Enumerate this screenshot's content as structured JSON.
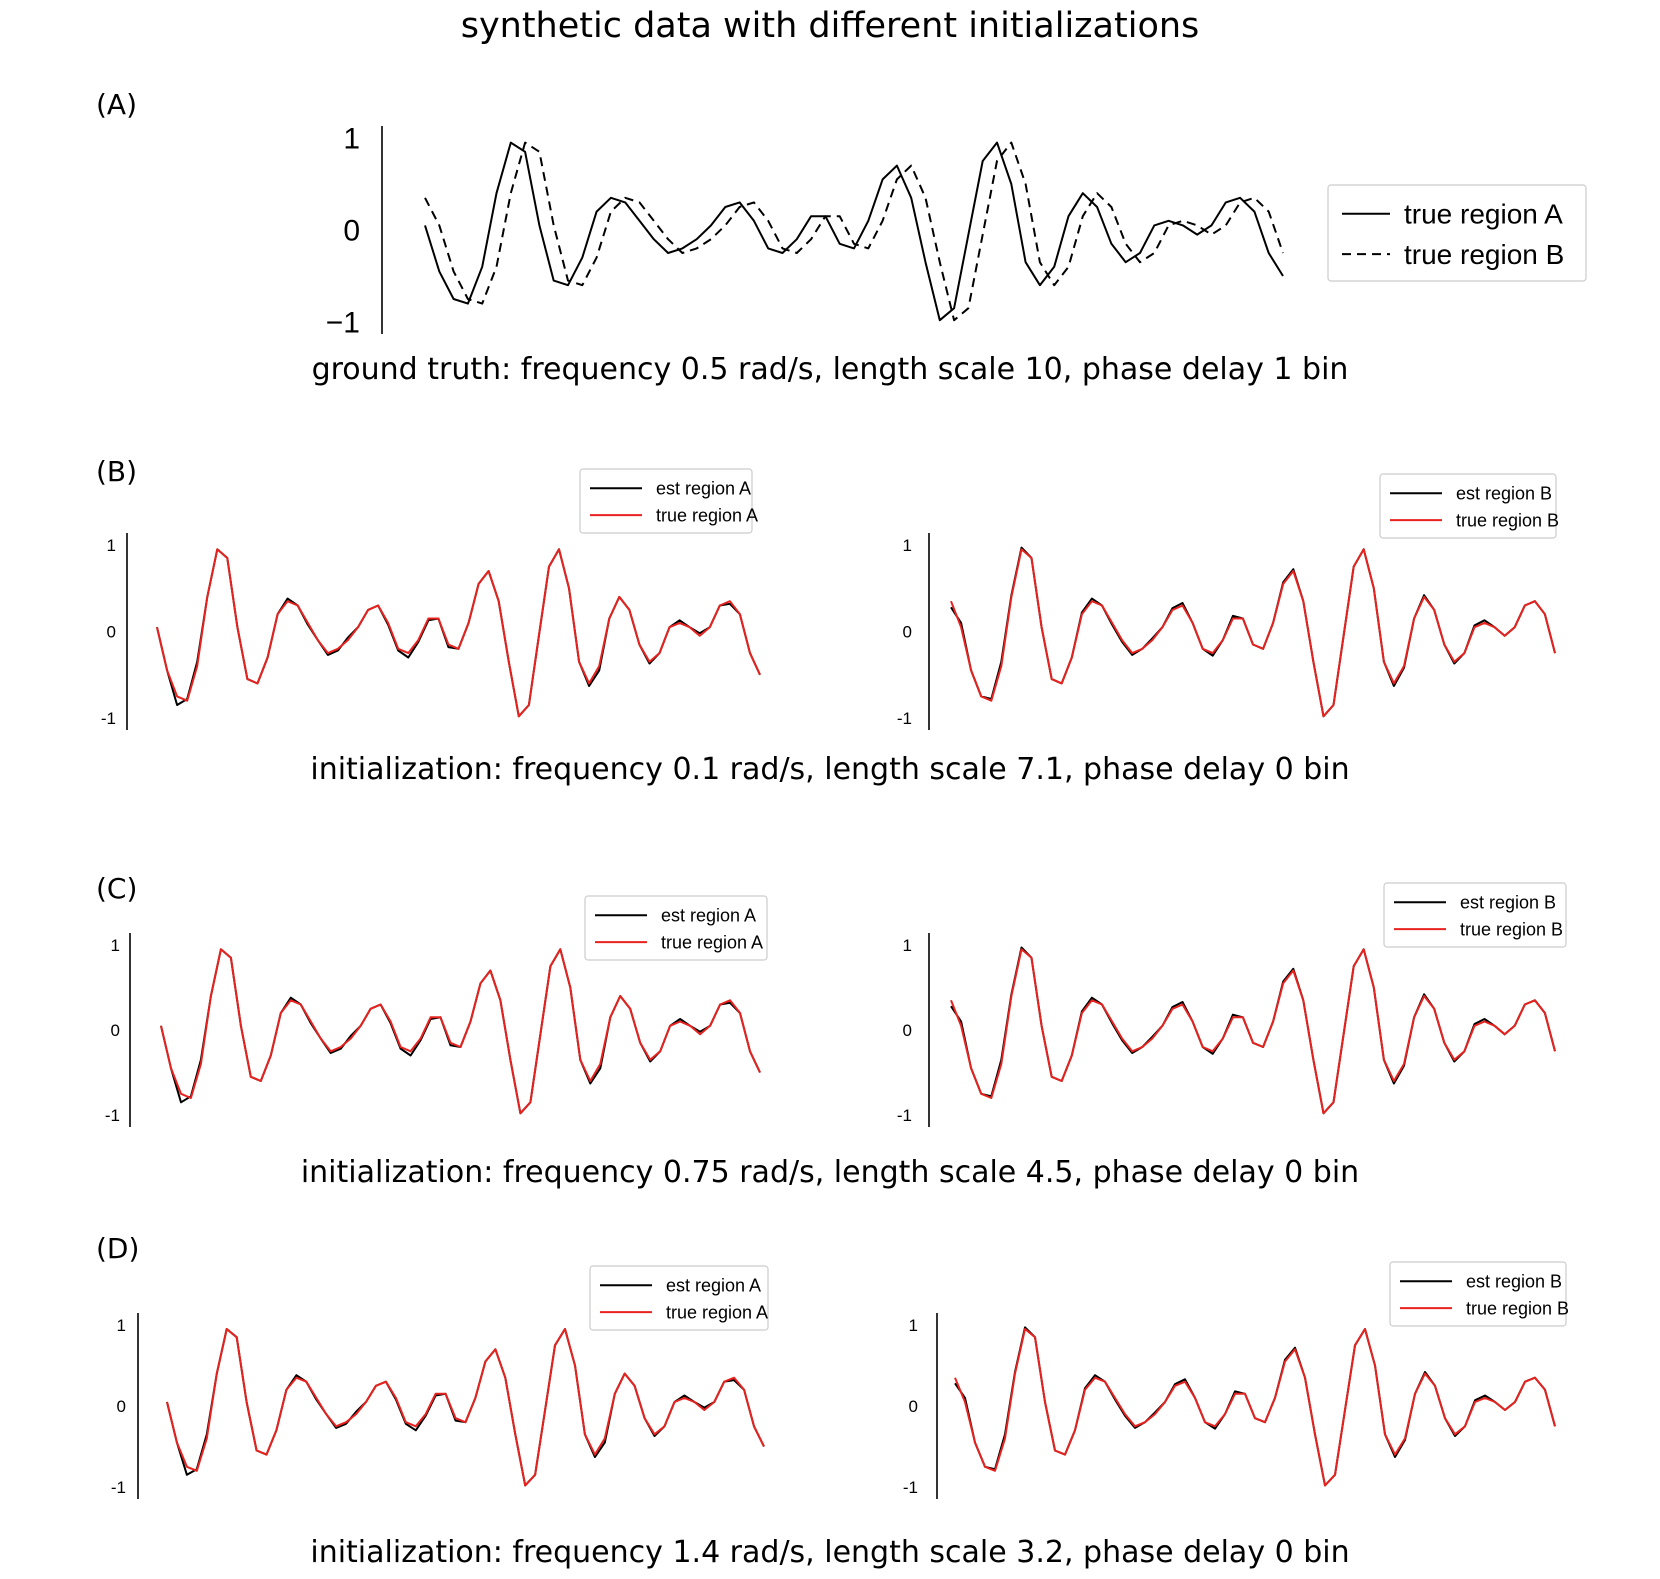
{
  "figure_title": "synthetic data with different initializations",
  "panels": {
    "A": {
      "label": "(A)",
      "caption": "ground truth: frequency 0.5 rad/s, length scale 10, phase delay 1 bin"
    },
    "B": {
      "label": "(B)",
      "caption": "initialization: frequency 0.1 rad/s, length scale 7.1, phase delay 0 bin"
    },
    "C": {
      "label": "(C)",
      "caption": "initialization: frequency 0.75 rad/s, length scale 4.5, phase delay 0 bin"
    },
    "D": {
      "label": "(D)",
      "caption": "initialization: frequency 1.4 rad/s, length scale 3.2, phase delay 0 bin"
    }
  },
  "colors": {
    "est": "#000000",
    "true": "#e8231f",
    "truth": "#000000"
  },
  "chart_data": [
    {
      "id": "A",
      "type": "line",
      "ylim": [
        -1,
        1
      ],
      "yticks": [
        "1",
        "0",
        "−1"
      ],
      "legend": "right",
      "series": [
        {
          "name": "true region A",
          "style": "solid",
          "values": [
            0.05,
            -0.45,
            -0.75,
            -0.8,
            -0.4,
            0.4,
            0.95,
            0.85,
            0.05,
            -0.55,
            -0.6,
            -0.3,
            0.2,
            0.35,
            0.3,
            0.1,
            -0.1,
            -0.25,
            -0.2,
            -0.1,
            0.05,
            0.25,
            0.3,
            0.1,
            -0.2,
            -0.25,
            -0.1,
            0.15,
            0.15,
            -0.15,
            -0.2,
            0.1,
            0.55,
            0.7,
            0.35,
            -0.35,
            -0.98,
            -0.85,
            -0.05,
            0.75,
            0.95,
            0.5,
            -0.35,
            -0.6,
            -0.4,
            0.15,
            0.4,
            0.25,
            -0.15,
            -0.35,
            -0.25,
            0.05,
            0.1,
            0.05,
            -0.05,
            0.05,
            0.3,
            0.35,
            0.2,
            -0.25,
            -0.5
          ]
        },
        {
          "name": "true region B",
          "style": "dashed",
          "values": [
            0.35,
            0.05,
            -0.45,
            -0.75,
            -0.8,
            -0.4,
            0.4,
            0.95,
            0.85,
            0.05,
            -0.55,
            -0.6,
            -0.3,
            0.2,
            0.35,
            0.3,
            0.1,
            -0.1,
            -0.25,
            -0.2,
            -0.1,
            0.05,
            0.25,
            0.3,
            0.1,
            -0.2,
            -0.25,
            -0.1,
            0.15,
            0.15,
            -0.15,
            -0.2,
            0.1,
            0.55,
            0.7,
            0.35,
            -0.35,
            -0.98,
            -0.85,
            -0.05,
            0.75,
            0.95,
            0.5,
            -0.35,
            -0.6,
            -0.4,
            0.15,
            0.4,
            0.25,
            -0.15,
            -0.35,
            -0.25,
            0.05,
            0.1,
            0.05,
            -0.05,
            0.05,
            0.3,
            0.35,
            0.2,
            -0.25
          ]
        }
      ]
    },
    {
      "id": "B-left",
      "type": "line",
      "ylim": [
        -1,
        1
      ],
      "yticks": [
        "1",
        "0",
        "-1"
      ],
      "legend": "top-right",
      "series": [
        {
          "name": "est region A",
          "values": [
            0.05,
            -0.45,
            -0.85,
            -0.78,
            -0.35,
            0.4,
            0.95,
            0.85,
            0.05,
            -0.55,
            -0.6,
            -0.3,
            0.2,
            0.38,
            0.3,
            0.08,
            -0.1,
            -0.27,
            -0.22,
            -0.07,
            0.05,
            0.25,
            0.3,
            0.08,
            -0.22,
            -0.3,
            -0.12,
            0.13,
            0.15,
            -0.18,
            -0.2,
            0.1,
            0.55,
            0.7,
            0.35,
            -0.35,
            -0.98,
            -0.85,
            -0.05,
            0.75,
            0.95,
            0.5,
            -0.35,
            -0.63,
            -0.45,
            0.15,
            0.4,
            0.25,
            -0.15,
            -0.37,
            -0.25,
            0.05,
            0.13,
            0.05,
            -0.02,
            0.05,
            0.3,
            0.32,
            0.2,
            -0.25,
            -0.5
          ]
        },
        {
          "name": "true region A",
          "values": [
            0.05,
            -0.45,
            -0.75,
            -0.8,
            -0.4,
            0.4,
            0.95,
            0.85,
            0.05,
            -0.55,
            -0.6,
            -0.3,
            0.2,
            0.35,
            0.3,
            0.1,
            -0.1,
            -0.25,
            -0.2,
            -0.1,
            0.05,
            0.25,
            0.3,
            0.1,
            -0.2,
            -0.25,
            -0.1,
            0.15,
            0.15,
            -0.15,
            -0.2,
            0.1,
            0.55,
            0.7,
            0.35,
            -0.35,
            -0.98,
            -0.85,
            -0.05,
            0.75,
            0.95,
            0.5,
            -0.35,
            -0.6,
            -0.4,
            0.15,
            0.4,
            0.25,
            -0.15,
            -0.35,
            -0.25,
            0.05,
            0.1,
            0.05,
            -0.05,
            0.05,
            0.3,
            0.35,
            0.2,
            -0.25,
            -0.5
          ]
        }
      ]
    },
    {
      "id": "B-right",
      "type": "line",
      "ylim": [
        -1,
        1
      ],
      "yticks": [
        "1",
        "0",
        "-1"
      ],
      "legend": "top-right",
      "series": [
        {
          "name": "est region B",
          "values": [
            0.28,
            0.1,
            -0.45,
            -0.75,
            -0.78,
            -0.35,
            0.42,
            0.97,
            0.85,
            0.05,
            -0.55,
            -0.6,
            -0.3,
            0.22,
            0.38,
            0.3,
            0.08,
            -0.12,
            -0.27,
            -0.2,
            -0.08,
            0.05,
            0.27,
            0.33,
            0.1,
            -0.2,
            -0.28,
            -0.1,
            0.18,
            0.15,
            -0.15,
            -0.2,
            0.1,
            0.57,
            0.72,
            0.35,
            -0.35,
            -0.98,
            -0.85,
            -0.05,
            0.75,
            0.95,
            0.5,
            -0.35,
            -0.63,
            -0.42,
            0.15,
            0.42,
            0.25,
            -0.15,
            -0.37,
            -0.25,
            0.07,
            0.13,
            0.05,
            -0.05,
            0.05,
            0.3,
            0.35,
            0.2,
            -0.25
          ]
        },
        {
          "name": "true region B",
          "values": [
            0.35,
            0.05,
            -0.45,
            -0.75,
            -0.8,
            -0.4,
            0.4,
            0.95,
            0.85,
            0.05,
            -0.55,
            -0.6,
            -0.3,
            0.2,
            0.35,
            0.3,
            0.1,
            -0.1,
            -0.25,
            -0.2,
            -0.1,
            0.05,
            0.25,
            0.3,
            0.1,
            -0.2,
            -0.25,
            -0.1,
            0.15,
            0.15,
            -0.15,
            -0.2,
            0.1,
            0.55,
            0.7,
            0.35,
            -0.35,
            -0.98,
            -0.85,
            -0.05,
            0.75,
            0.95,
            0.5,
            -0.35,
            -0.6,
            -0.4,
            0.15,
            0.4,
            0.25,
            -0.15,
            -0.35,
            -0.25,
            0.05,
            0.1,
            0.05,
            -0.05,
            0.05,
            0.3,
            0.35,
            0.2,
            -0.25
          ]
        }
      ]
    },
    {
      "id": "C-left",
      "type": "line",
      "ylim": [
        -1,
        1
      ],
      "yticks": [
        "1",
        "0",
        "-1"
      ],
      "legend": "top-right",
      "series": [
        {
          "name": "est region A",
          "values": [
            0.05,
            -0.45,
            -0.85,
            -0.78,
            -0.35,
            0.4,
            0.95,
            0.85,
            0.05,
            -0.55,
            -0.6,
            -0.3,
            0.2,
            0.38,
            0.3,
            0.08,
            -0.1,
            -0.27,
            -0.22,
            -0.07,
            0.05,
            0.25,
            0.3,
            0.08,
            -0.22,
            -0.3,
            -0.12,
            0.13,
            0.15,
            -0.18,
            -0.2,
            0.1,
            0.55,
            0.7,
            0.35,
            -0.35,
            -0.98,
            -0.85,
            -0.05,
            0.75,
            0.95,
            0.5,
            -0.35,
            -0.63,
            -0.45,
            0.15,
            0.4,
            0.25,
            -0.15,
            -0.37,
            -0.25,
            0.05,
            0.13,
            0.05,
            -0.02,
            0.05,
            0.3,
            0.32,
            0.2,
            -0.25,
            -0.5
          ]
        },
        {
          "name": "true region A",
          "values": [
            0.05,
            -0.45,
            -0.75,
            -0.8,
            -0.4,
            0.4,
            0.95,
            0.85,
            0.05,
            -0.55,
            -0.6,
            -0.3,
            0.2,
            0.35,
            0.3,
            0.1,
            -0.1,
            -0.25,
            -0.2,
            -0.1,
            0.05,
            0.25,
            0.3,
            0.1,
            -0.2,
            -0.25,
            -0.1,
            0.15,
            0.15,
            -0.15,
            -0.2,
            0.1,
            0.55,
            0.7,
            0.35,
            -0.35,
            -0.98,
            -0.85,
            -0.05,
            0.75,
            0.95,
            0.5,
            -0.35,
            -0.6,
            -0.4,
            0.15,
            0.4,
            0.25,
            -0.15,
            -0.35,
            -0.25,
            0.05,
            0.1,
            0.05,
            -0.05,
            0.05,
            0.3,
            0.35,
            0.2,
            -0.25,
            -0.5
          ]
        }
      ]
    },
    {
      "id": "C-right",
      "type": "line",
      "ylim": [
        -1,
        1
      ],
      "yticks": [
        "1",
        "0",
        "-1"
      ],
      "legend": "top-right",
      "series": [
        {
          "name": "est region B",
          "values": [
            0.28,
            0.1,
            -0.45,
            -0.75,
            -0.78,
            -0.35,
            0.42,
            0.97,
            0.85,
            0.05,
            -0.55,
            -0.6,
            -0.3,
            0.22,
            0.38,
            0.3,
            0.08,
            -0.12,
            -0.27,
            -0.2,
            -0.08,
            0.05,
            0.27,
            0.33,
            0.1,
            -0.2,
            -0.28,
            -0.1,
            0.18,
            0.15,
            -0.15,
            -0.2,
            0.1,
            0.57,
            0.72,
            0.35,
            -0.35,
            -0.98,
            -0.85,
            -0.05,
            0.75,
            0.95,
            0.5,
            -0.35,
            -0.63,
            -0.42,
            0.15,
            0.42,
            0.25,
            -0.15,
            -0.37,
            -0.25,
            0.07,
            0.13,
            0.05,
            -0.05,
            0.05,
            0.3,
            0.35,
            0.2,
            -0.25
          ]
        },
        {
          "name": "true region B",
          "values": [
            0.35,
            0.05,
            -0.45,
            -0.75,
            -0.8,
            -0.4,
            0.4,
            0.95,
            0.85,
            0.05,
            -0.55,
            -0.6,
            -0.3,
            0.2,
            0.35,
            0.3,
            0.1,
            -0.1,
            -0.25,
            -0.2,
            -0.1,
            0.05,
            0.25,
            0.3,
            0.1,
            -0.2,
            -0.25,
            -0.1,
            0.15,
            0.15,
            -0.15,
            -0.2,
            0.1,
            0.55,
            0.7,
            0.35,
            -0.35,
            -0.98,
            -0.85,
            -0.05,
            0.75,
            0.95,
            0.5,
            -0.35,
            -0.6,
            -0.4,
            0.15,
            0.4,
            0.25,
            -0.15,
            -0.35,
            -0.25,
            0.05,
            0.1,
            0.05,
            -0.05,
            0.05,
            0.3,
            0.35,
            0.2,
            -0.25
          ]
        }
      ]
    },
    {
      "id": "D-left",
      "type": "line",
      "ylim": [
        -1,
        1
      ],
      "yticks": [
        "1",
        "0",
        "-1"
      ],
      "legend": "top-right",
      "series": [
        {
          "name": "est region A",
          "values": [
            0.05,
            -0.45,
            -0.85,
            -0.78,
            -0.35,
            0.4,
            0.95,
            0.85,
            0.05,
            -0.55,
            -0.6,
            -0.3,
            0.2,
            0.38,
            0.3,
            0.08,
            -0.1,
            -0.27,
            -0.22,
            -0.07,
            0.05,
            0.25,
            0.3,
            0.08,
            -0.22,
            -0.3,
            -0.12,
            0.13,
            0.15,
            -0.18,
            -0.2,
            0.1,
            0.55,
            0.7,
            0.35,
            -0.35,
            -0.98,
            -0.85,
            -0.05,
            0.75,
            0.95,
            0.5,
            -0.35,
            -0.63,
            -0.45,
            0.15,
            0.4,
            0.25,
            -0.15,
            -0.37,
            -0.25,
            0.05,
            0.13,
            0.05,
            -0.02,
            0.05,
            0.3,
            0.32,
            0.2,
            -0.25,
            -0.5
          ]
        },
        {
          "name": "true region A",
          "values": [
            0.05,
            -0.45,
            -0.75,
            -0.8,
            -0.4,
            0.4,
            0.95,
            0.85,
            0.05,
            -0.55,
            -0.6,
            -0.3,
            0.2,
            0.35,
            0.3,
            0.1,
            -0.1,
            -0.25,
            -0.2,
            -0.1,
            0.05,
            0.25,
            0.3,
            0.1,
            -0.2,
            -0.25,
            -0.1,
            0.15,
            0.15,
            -0.15,
            -0.2,
            0.1,
            0.55,
            0.7,
            0.35,
            -0.35,
            -0.98,
            -0.85,
            -0.05,
            0.75,
            0.95,
            0.5,
            -0.35,
            -0.6,
            -0.4,
            0.15,
            0.4,
            0.25,
            -0.15,
            -0.35,
            -0.25,
            0.05,
            0.1,
            0.05,
            -0.05,
            0.05,
            0.3,
            0.35,
            0.2,
            -0.25,
            -0.5
          ]
        }
      ]
    },
    {
      "id": "D-right",
      "type": "line",
      "ylim": [
        -1,
        1
      ],
      "yticks": [
        "1",
        "0",
        "-1"
      ],
      "legend": "top-right",
      "series": [
        {
          "name": "est region B",
          "values": [
            0.28,
            0.1,
            -0.45,
            -0.75,
            -0.78,
            -0.35,
            0.42,
            0.97,
            0.85,
            0.05,
            -0.55,
            -0.6,
            -0.3,
            0.22,
            0.38,
            0.3,
            0.08,
            -0.12,
            -0.27,
            -0.2,
            -0.08,
            0.05,
            0.27,
            0.33,
            0.1,
            -0.2,
            -0.28,
            -0.1,
            0.18,
            0.15,
            -0.15,
            -0.2,
            0.1,
            0.57,
            0.72,
            0.35,
            -0.35,
            -0.98,
            -0.85,
            -0.05,
            0.75,
            0.95,
            0.5,
            -0.35,
            -0.63,
            -0.42,
            0.15,
            0.42,
            0.25,
            -0.15,
            -0.37,
            -0.25,
            0.07,
            0.13,
            0.05,
            -0.05,
            0.05,
            0.3,
            0.35,
            0.2,
            -0.25
          ]
        },
        {
          "name": "true region B",
          "values": [
            0.35,
            0.05,
            -0.45,
            -0.75,
            -0.8,
            -0.4,
            0.4,
            0.95,
            0.85,
            0.05,
            -0.55,
            -0.6,
            -0.3,
            0.2,
            0.35,
            0.3,
            0.1,
            -0.1,
            -0.25,
            -0.2,
            -0.1,
            0.05,
            0.25,
            0.3,
            0.1,
            -0.2,
            -0.25,
            -0.1,
            0.15,
            0.15,
            -0.15,
            -0.2,
            0.1,
            0.55,
            0.7,
            0.35,
            -0.35,
            -0.98,
            -0.85,
            -0.05,
            0.75,
            0.95,
            0.5,
            -0.35,
            -0.6,
            -0.4,
            0.15,
            0.4,
            0.25,
            -0.15,
            -0.35,
            -0.25,
            0.05,
            0.1,
            0.05,
            -0.05,
            0.05,
            0.3,
            0.35,
            0.2,
            -0.25
          ]
        }
      ]
    }
  ]
}
